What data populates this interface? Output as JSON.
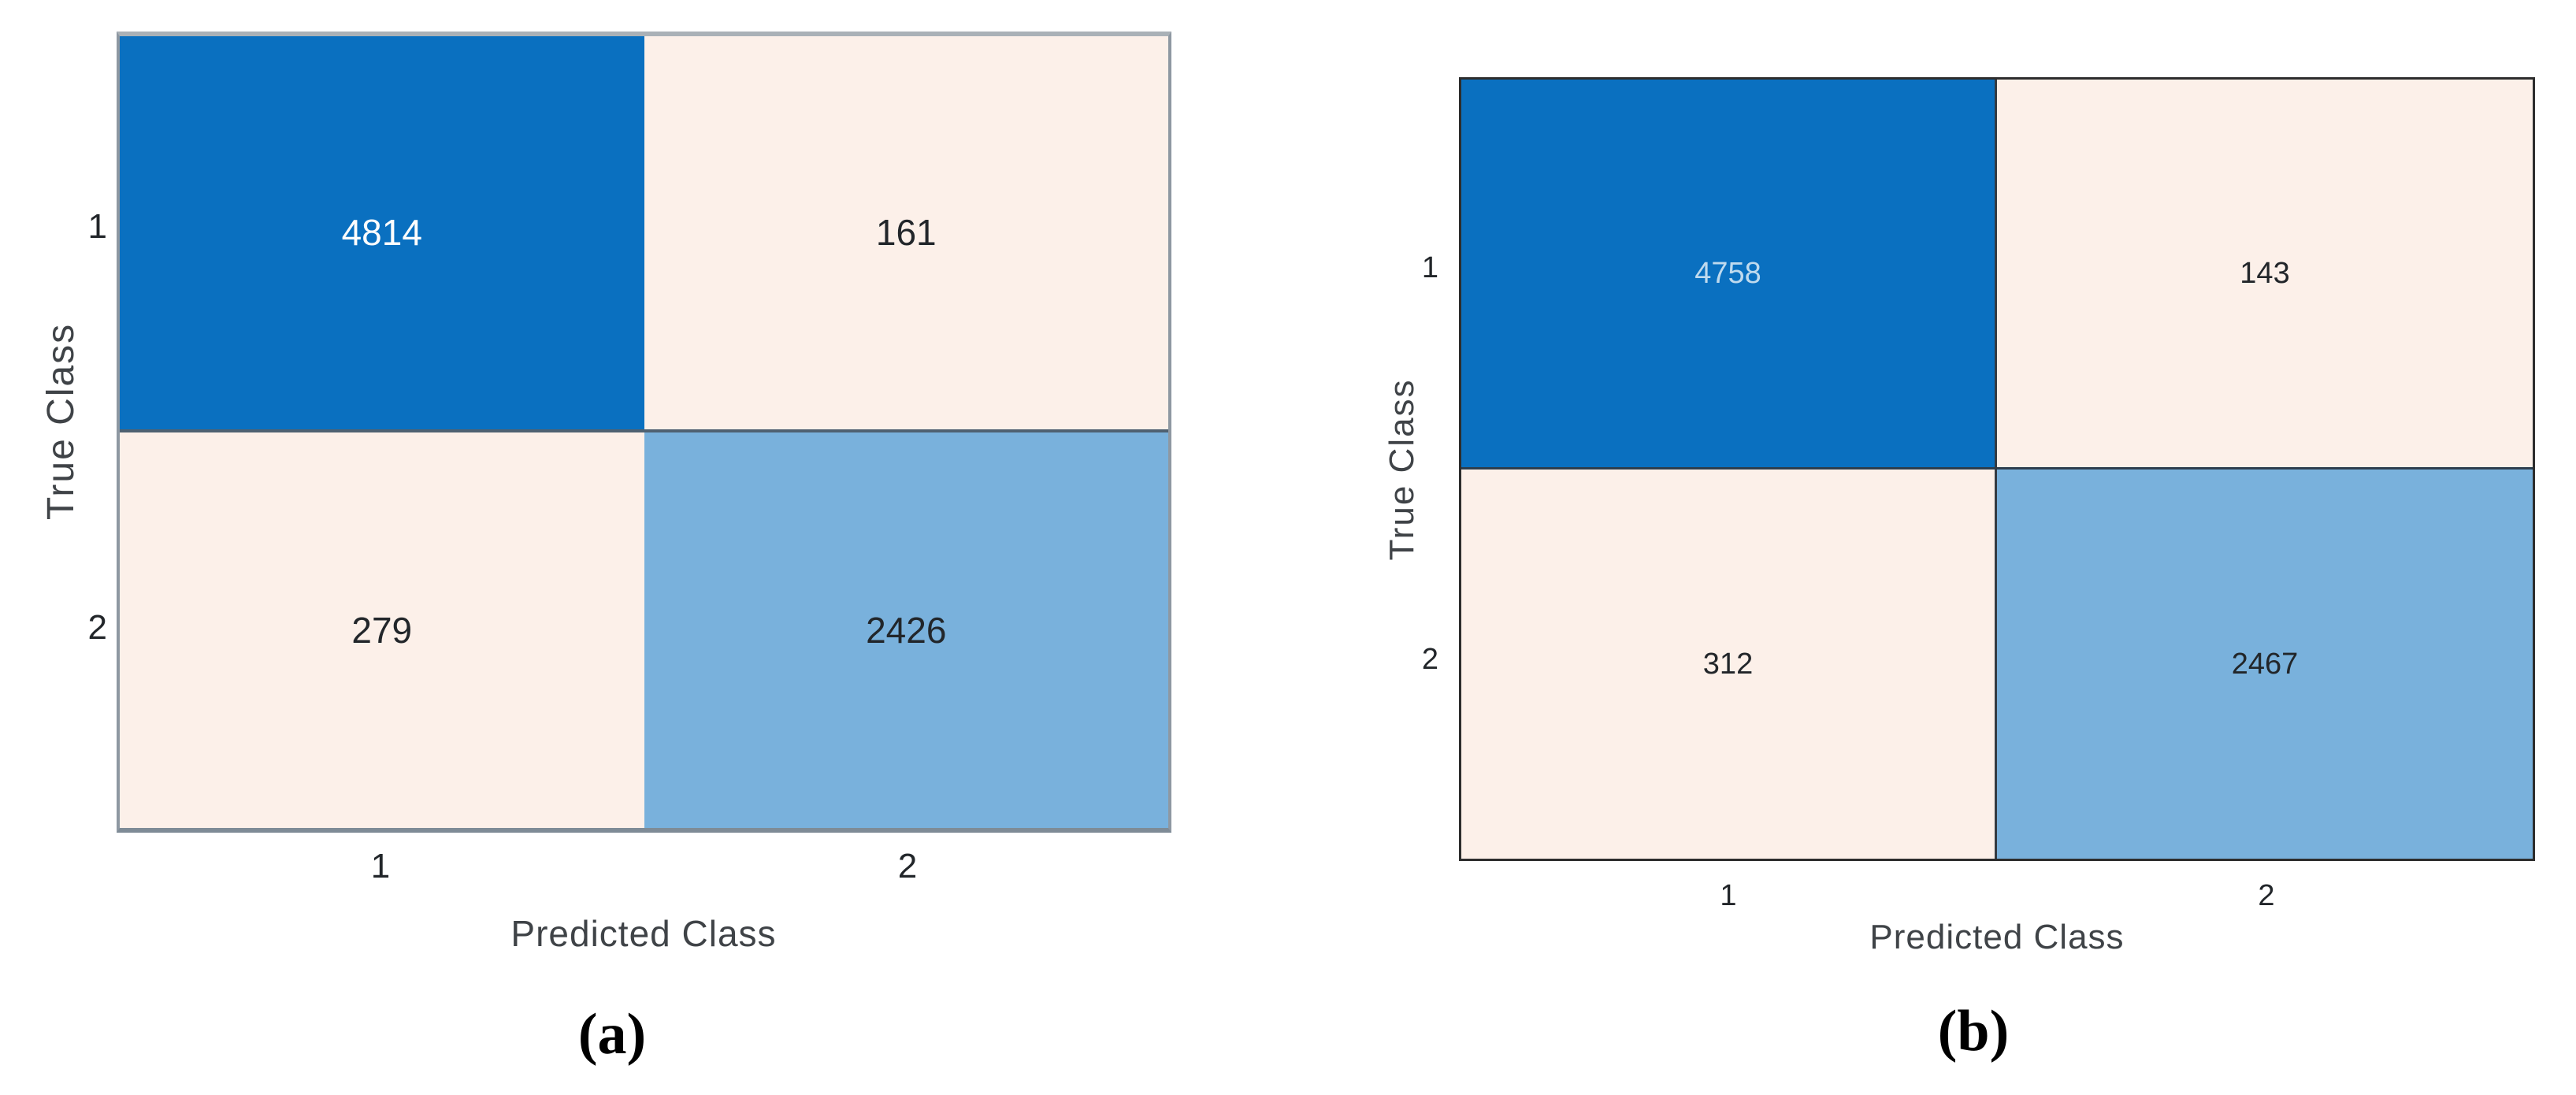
{
  "chart_data": [
    {
      "type": "heatmap",
      "panel_label": "(a)",
      "xlabel": "Predicted Class",
      "ylabel": "True Class",
      "x_tick_labels": [
        "1",
        "2"
      ],
      "y_tick_labels": [
        "1",
        "2"
      ],
      "matrix": [
        [
          4814,
          161
        ],
        [
          279,
          2426
        ]
      ],
      "legend_position": "none",
      "grid": false
    },
    {
      "type": "heatmap",
      "panel_label": "(b)",
      "xlabel": "Predicted Class",
      "ylabel": "True Class",
      "x_tick_labels": [
        "1",
        "2"
      ],
      "y_tick_labels": [
        "1",
        "2"
      ],
      "matrix": [
        [
          4758,
          143
        ],
        [
          312,
          2467
        ]
      ],
      "legend_position": "none",
      "grid": false
    }
  ],
  "colors": {
    "diagonal_dark_blue": "#0a70c0",
    "diagonal_light_blue": "#79b1dc",
    "off_diagonal_cream": "#fcf0e9",
    "value_text_on_dark_a": "#fdfdfd",
    "value_text_on_dark_b": "#bfdaee",
    "value_text_dark": "#22262a",
    "axis_text": "#3f4347",
    "caption_text": "#000000"
  }
}
